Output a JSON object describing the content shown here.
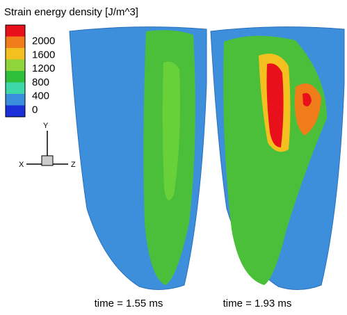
{
  "legend": {
    "title": "Strain energy density [J/m^3]",
    "labels": [
      "2000",
      "1600",
      "1200",
      "800",
      "400",
      "0"
    ],
    "colors": [
      "#e8101a",
      "#f07d1a",
      "#f4c020",
      "#8ed43a",
      "#2fbf3a",
      "#3ed8a8",
      "#3a8fdc",
      "#1a2fd8"
    ]
  },
  "triad": {
    "y": "Y",
    "x": "X",
    "z": "Z"
  },
  "panels": [
    {
      "caption": "time = 1.55 ms"
    },
    {
      "caption": "time = 1.93 ms"
    }
  ]
}
